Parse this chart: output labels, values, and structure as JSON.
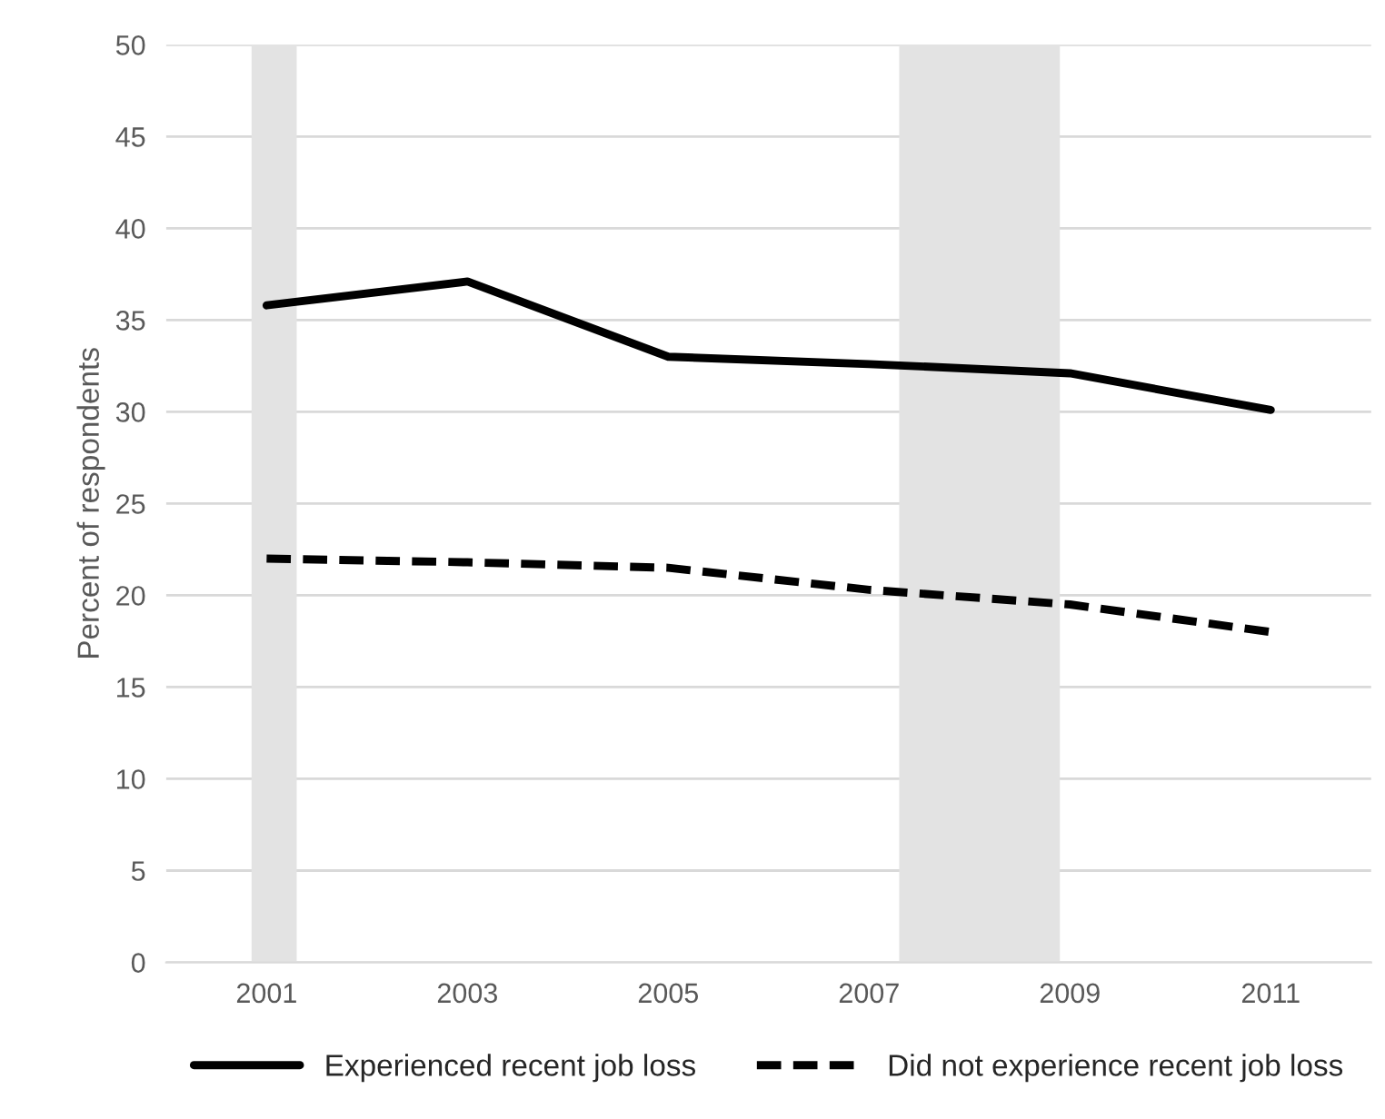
{
  "chart_data": {
    "type": "line",
    "ylabel": "Percent of respondents",
    "x": [
      2001,
      2003,
      2005,
      2007,
      2009,
      2011
    ],
    "series": [
      {
        "name": "Experienced recent job loss",
        "color": "#000000",
        "line_style": "solid",
        "values": [
          35.8,
          37.1,
          33.0,
          32.6,
          32.1,
          30.1
        ]
      },
      {
        "name": "Did not experience recent job loss",
        "color": "#000000",
        "line_style": "dashed",
        "values": [
          22.0,
          21.8,
          21.5,
          20.3,
          19.5,
          18.0
        ]
      }
    ],
    "xlim": [
      2000,
      2012
    ],
    "xticks": [
      2001,
      2003,
      2005,
      2007,
      2009,
      2011
    ],
    "ylim": [
      0,
      50
    ],
    "yticks": [
      0,
      5,
      10,
      15,
      20,
      25,
      30,
      35,
      40,
      45,
      50
    ],
    "bands": [
      {
        "axis": "x",
        "from": 2000.85,
        "to": 2001.3,
        "color": "#e3e3e3"
      },
      {
        "axis": "x",
        "from": 2007.3,
        "to": 2008.9,
        "color": "#e3e3e3"
      }
    ],
    "grid": "y",
    "legend": "bottom",
    "marker": "none"
  }
}
